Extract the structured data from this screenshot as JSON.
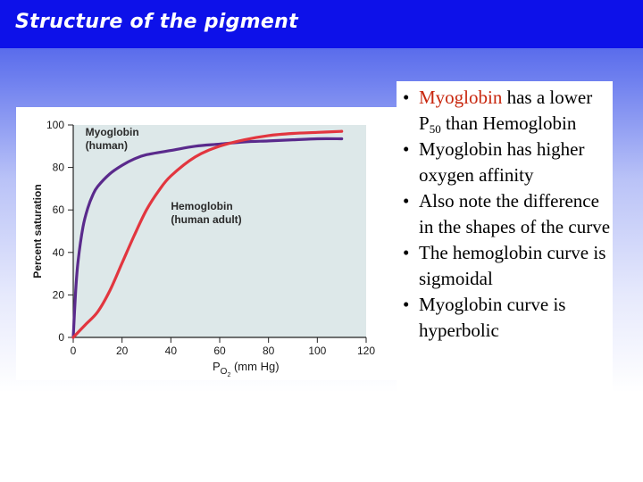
{
  "slide": {
    "title": "Structure of the pigment"
  },
  "bullets": [
    {
      "parts": [
        {
          "text": "Myoglobin",
          "highlight": true
        },
        {
          "text": " has a lower P"
        },
        {
          "text": "50",
          "sub": true
        },
        {
          "text": " than Hemoglobin"
        }
      ]
    },
    {
      "parts": [
        {
          "text": "Myoglobin has higher oxygen affinity"
        }
      ]
    },
    {
      "parts": [
        {
          "text": "Also note the difference in the shapes of the curve"
        }
      ]
    },
    {
      "parts": [
        {
          "text": "The hemoglobin curve is sigmoidal"
        }
      ]
    },
    {
      "parts": [
        {
          "text": "Myoglobin curve is hyperbolic"
        }
      ]
    }
  ],
  "colors": {
    "highlight": "#c8270e",
    "title_bar": "#0d11e9",
    "plot_background": "#dde8e9",
    "myoglobin": "#5a2a8c",
    "hemoglobin": "#e2363f"
  },
  "chart_data": {
    "type": "line",
    "title": "",
    "xlabel": "P",
    "xlabel_sub": "O",
    "xlabel_sub2": "2",
    "xlabel_units": " (mm Hg)",
    "ylabel": "Percent saturation",
    "xlim": [
      0,
      120
    ],
    "ylim": [
      0,
      100
    ],
    "x_ticks": [
      "0",
      "20",
      "40",
      "60",
      "80",
      "100",
      "120"
    ],
    "y_ticks": [
      "0",
      "20",
      "40",
      "60",
      "80",
      "100"
    ],
    "grid": false,
    "series": [
      {
        "name": "Myoglobin",
        "label_lines": [
          "Myoglobin",
          "(human)"
        ],
        "color": "#5a2a8c",
        "x": [
          0,
          1,
          2,
          4,
          6,
          8,
          10,
          15,
          20,
          25,
          30,
          40,
          50,
          60,
          70,
          80,
          90,
          100,
          110
        ],
        "y": [
          0,
          22,
          36,
          52,
          61,
          67,
          71,
          77,
          81,
          84,
          86,
          88,
          90,
          91,
          92,
          92.5,
          93,
          93.5,
          93.5
        ]
      },
      {
        "name": "Hemoglobin",
        "label_lines": [
          "Hemoglobin",
          "(human adult)"
        ],
        "color": "#e2363f",
        "x": [
          0,
          5,
          10,
          15,
          20,
          25,
          30,
          35,
          40,
          50,
          60,
          70,
          80,
          90,
          100,
          110
        ],
        "y": [
          0,
          6,
          12,
          22,
          35,
          48,
          60,
          69,
          76,
          85,
          90,
          93,
          95,
          96,
          96.5,
          97
        ]
      }
    ]
  }
}
